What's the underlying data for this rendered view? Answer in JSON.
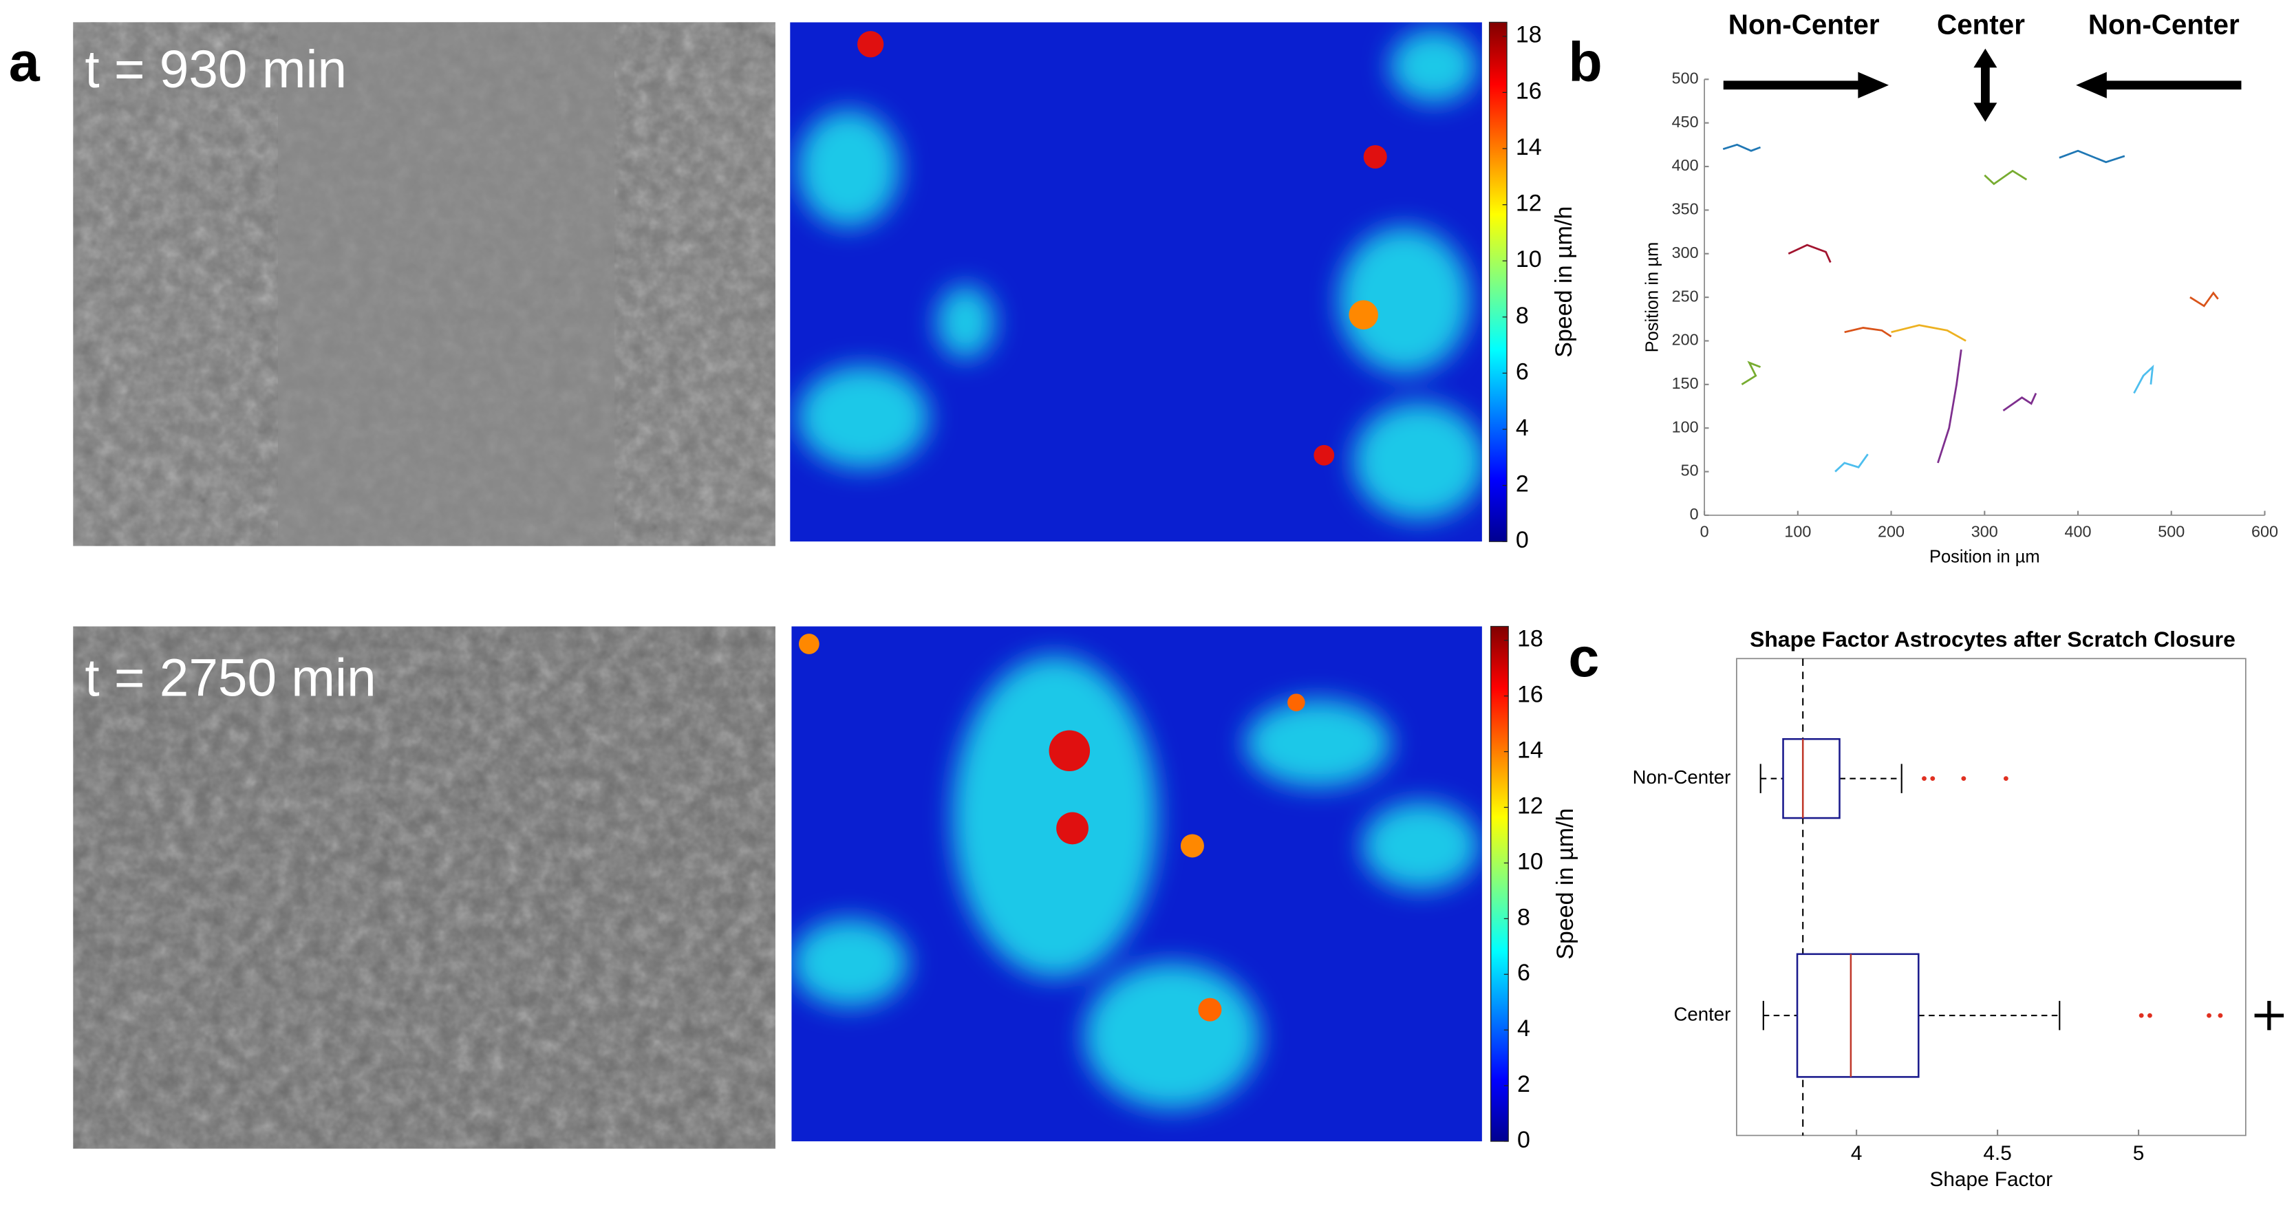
{
  "panel_labels": [
    "a",
    "b",
    "c"
  ],
  "time_labels": [
    "t = 930 min",
    "t = 2750 min"
  ],
  "chart_data": [
    {
      "type": "colorbar",
      "label": "Speed in µm/h",
      "ylim": [
        0,
        18.5
      ],
      "yticks": [
        0,
        2,
        4,
        6,
        8,
        10,
        12,
        14,
        16,
        18
      ]
    },
    {
      "type": "colorbar",
      "label": "Speed in µm/h",
      "ylim": [
        0,
        18.5
      ],
      "yticks": [
        0,
        2,
        4,
        6,
        8,
        10,
        12,
        14,
        16,
        18
      ]
    },
    {
      "type": "trajectories",
      "xlabel": "Position in µm",
      "ylabel": "Position in µm",
      "annotations": [
        "Non-Center",
        "Center",
        "Non-Center"
      ],
      "xlim": [
        0,
        600
      ],
      "ylim": [
        0,
        500
      ],
      "xticks": [
        0,
        100,
        200,
        300,
        400,
        500,
        600
      ],
      "yticks": [
        0,
        50,
        100,
        150,
        200,
        250,
        300,
        350,
        400,
        450,
        500
      ],
      "series": [
        {
          "color": "#1f77b4",
          "x": [
            20,
            35,
            50,
            60
          ],
          "y": [
            420,
            425,
            418,
            422
          ]
        },
        {
          "color": "#d95319",
          "x": [
            150,
            170,
            190,
            200
          ],
          "y": [
            210,
            215,
            212,
            205
          ]
        },
        {
          "color": "#edb120",
          "x": [
            200,
            230,
            260,
            280
          ],
          "y": [
            210,
            218,
            212,
            200
          ]
        },
        {
          "color": "#7e2f8e",
          "x": [
            250,
            262,
            270,
            275
          ],
          "y": [
            60,
            100,
            150,
            190
          ]
        },
        {
          "color": "#77ac30",
          "x": [
            300,
            310,
            330,
            345
          ],
          "y": [
            390,
            380,
            395,
            385
          ]
        },
        {
          "color": "#4dbeee",
          "x": [
            460,
            470,
            480,
            478
          ],
          "y": [
            140,
            160,
            170,
            150
          ]
        },
        {
          "color": "#a2142f",
          "x": [
            90,
            110,
            130,
            135
          ],
          "y": [
            300,
            310,
            302,
            290
          ]
        },
        {
          "color": "#1f77b4",
          "x": [
            380,
            400,
            430,
            450
          ],
          "y": [
            410,
            418,
            405,
            412
          ]
        },
        {
          "color": "#d95319",
          "x": [
            520,
            535,
            545,
            550
          ],
          "y": [
            250,
            240,
            255,
            248
          ]
        },
        {
          "color": "#4dbeee",
          "x": [
            140,
            150,
            165,
            175
          ],
          "y": [
            50,
            60,
            55,
            70
          ]
        },
        {
          "color": "#7e2f8e",
          "x": [
            320,
            340,
            350,
            355
          ],
          "y": [
            120,
            135,
            128,
            140
          ]
        },
        {
          "color": "#77ac30",
          "x": [
            40,
            55,
            48,
            60
          ],
          "y": [
            150,
            160,
            175,
            170
          ]
        }
      ]
    },
    {
      "type": "box",
      "title": "Shape Factor Astrocytes after Scratch Closure",
      "xlabel": "Shape Factor",
      "xlim": [
        3.575,
        5.38
      ],
      "xticks": [
        4,
        4.5,
        5
      ],
      "reference": 3.81,
      "categories": [
        "Non-Center",
        "Center"
      ],
      "boxes": [
        {
          "whislo": 3.66,
          "q1": 3.74,
          "med": 3.81,
          "q3": 3.94,
          "whishi": 4.16,
          "fliers": [
            4.24,
            4.27,
            4.38,
            4.53
          ]
        },
        {
          "whislo": 3.67,
          "q1": 3.79,
          "med": 3.98,
          "q3": 4.22,
          "whishi": 4.72,
          "fliers": [
            5.01,
            5.04,
            5.25,
            5.29
          ]
        }
      ]
    }
  ]
}
